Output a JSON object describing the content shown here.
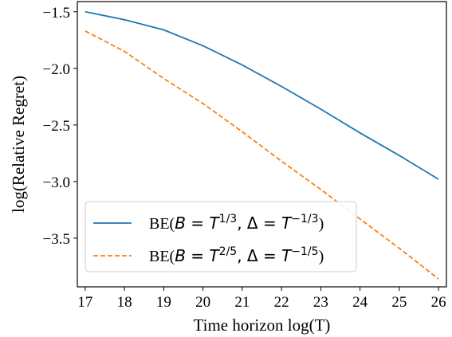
{
  "chart_data": {
    "type": "line",
    "title": "",
    "xlabel": "Time horizon log(T)",
    "ylabel": "log(Relative Regret)",
    "xlim": [
      16.8,
      26.2
    ],
    "ylim": [
      -3.93,
      -1.41
    ],
    "x": [
      17,
      18,
      19,
      20,
      21,
      22,
      23,
      24,
      25,
      26
    ],
    "xticks": [
      17,
      18,
      19,
      20,
      21,
      22,
      23,
      24,
      25,
      26
    ],
    "xtick_labels": [
      "17",
      "18",
      "19",
      "20",
      "21",
      "22",
      "23",
      "24",
      "25",
      "26"
    ],
    "yticks": [
      -1.5,
      -2.0,
      -2.5,
      -3.0,
      -3.5
    ],
    "ytick_labels": [
      "−1.5",
      "−2.0",
      "−2.5",
      "−3.0",
      "−3.5"
    ],
    "grid": false,
    "legend_position": "lower-left",
    "series": [
      {
        "name": "BE(B = T^{1/3}, Δ = T^{−1/3})",
        "color": "#1f77b4",
        "style": "solid",
        "values": [
          -1.5,
          -1.57,
          -1.66,
          -1.8,
          -1.97,
          -2.16,
          -2.36,
          -2.57,
          -2.77,
          -2.98
        ],
        "legend": {
          "prefix": "BE(",
          "b": "B",
          "eq": " = ",
          "t1": "T",
          "exp1": "1/3",
          "sep": ", ",
          "delta": "Δ",
          "eq2": " = ",
          "t2": "T",
          "exp2": "−1/3",
          "suffix": ")"
        }
      },
      {
        "name": "BE(B = T^{2/5}, Δ = T^{−1/5})",
        "color": "#ff7f0e",
        "style": "dashed",
        "values": [
          -1.67,
          -1.85,
          -2.09,
          -2.31,
          -2.56,
          -2.82,
          -3.07,
          -3.33,
          -3.59,
          -3.86
        ],
        "legend": {
          "prefix": "BE(",
          "b": "B",
          "eq": " = ",
          "t1": "T",
          "exp1": "2/5",
          "sep": ", ",
          "delta": "Δ",
          "eq2": " = ",
          "t2": "T",
          "exp2": "−1/5",
          "suffix": ")"
        }
      }
    ]
  }
}
